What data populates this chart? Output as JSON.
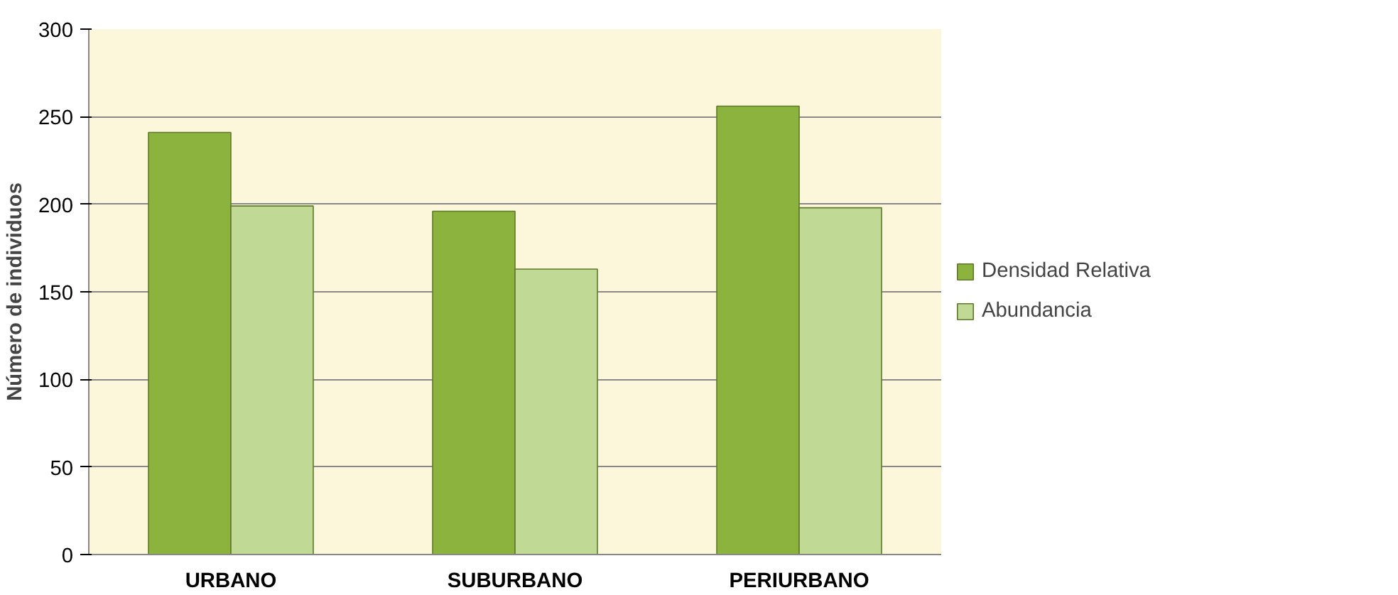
{
  "chart_data": {
    "type": "bar",
    "ylabel": "Número de individuos",
    "categories": [
      "URBANO",
      "SUBURBANO",
      "PERIURBANO"
    ],
    "series": [
      {
        "name": "Densidad Relativa",
        "color": "#8db33f",
        "values": [
          241,
          196,
          256
        ]
      },
      {
        "name": "Abundancia",
        "color": "#c0da95",
        "values": [
          199,
          163,
          198
        ]
      }
    ],
    "ylim": [
      0,
      300
    ],
    "yticks": [
      0,
      50,
      100,
      150,
      200,
      250,
      300
    ],
    "grid": "y",
    "legend": "right"
  }
}
